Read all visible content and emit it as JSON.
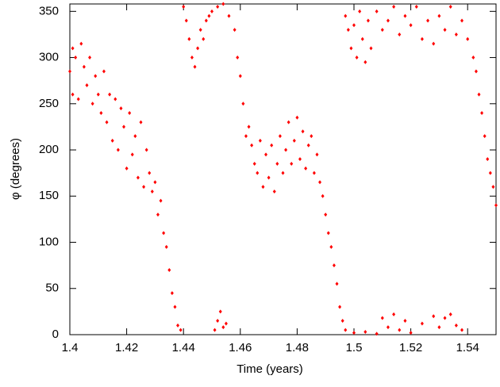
{
  "chart_data": {
    "type": "scatter",
    "x_label": "Time (years)",
    "y_label": "φ (degrees)",
    "color": "#ff0000",
    "xlim": [
      1.4,
      1.55
    ],
    "ylim": [
      0,
      358
    ],
    "xticks": [
      1.4,
      1.42,
      1.44,
      1.46,
      1.48,
      1.5,
      1.52,
      1.54
    ],
    "yticks": [
      0,
      50,
      100,
      150,
      200,
      250,
      300,
      350
    ],
    "x": [
      1.4,
      1.401,
      1.401,
      1.402,
      1.403,
      1.404,
      1.405,
      1.406,
      1.407,
      1.408,
      1.409,
      1.41,
      1.411,
      1.412,
      1.413,
      1.414,
      1.415,
      1.416,
      1.417,
      1.418,
      1.419,
      1.42,
      1.421,
      1.422,
      1.423,
      1.424,
      1.425,
      1.426,
      1.427,
      1.428,
      1.429,
      1.43,
      1.431,
      1.432,
      1.433,
      1.434,
      1.435,
      1.436,
      1.437,
      1.438,
      1.439,
      1.44,
      1.441,
      1.442,
      1.443,
      1.444,
      1.445,
      1.446,
      1.447,
      1.448,
      1.449,
      1.45,
      1.451,
      1.452,
      1.453,
      1.454,
      1.455,
      1.452,
      1.454,
      1.456,
      1.458,
      1.459,
      1.46,
      1.461,
      1.462,
      1.463,
      1.464,
      1.465,
      1.466,
      1.467,
      1.468,
      1.469,
      1.47,
      1.471,
      1.472,
      1.473,
      1.474,
      1.475,
      1.476,
      1.477,
      1.478,
      1.479,
      1.48,
      1.481,
      1.482,
      1.483,
      1.484,
      1.485,
      1.486,
      1.487,
      1.488,
      1.489,
      1.49,
      1.491,
      1.492,
      1.493,
      1.494,
      1.495,
      1.496,
      1.497,
      1.497,
      1.498,
      1.499,
      1.5,
      1.501,
      1.502,
      1.503,
      1.504,
      1.505,
      1.506,
      1.508,
      1.51,
      1.512,
      1.514,
      1.516,
      1.518,
      1.52,
      1.522,
      1.524,
      1.526,
      1.528,
      1.53,
      1.532,
      1.534,
      1.536,
      1.538,
      1.54,
      1.542,
      1.543,
      1.544,
      1.545,
      1.546,
      1.547,
      1.548,
      1.549,
      1.55,
      1.5,
      1.504,
      1.508,
      1.51,
      1.512,
      1.514,
      1.516,
      1.518,
      1.52,
      1.524,
      1.528,
      1.53,
      1.532,
      1.534,
      1.536,
      1.538
    ],
    "values": [
      285,
      260,
      310,
      300,
      255,
      315,
      290,
      270,
      300,
      250,
      280,
      260,
      240,
      285,
      230,
      260,
      210,
      255,
      200,
      245,
      225,
      180,
      240,
      195,
      215,
      170,
      230,
      160,
      200,
      175,
      155,
      165,
      130,
      145,
      110,
      95,
      70,
      45,
      30,
      10,
      5,
      355,
      340,
      320,
      300,
      290,
      310,
      330,
      320,
      340,
      345,
      350,
      5,
      15,
      25,
      8,
      12,
      355,
      358,
      345,
      330,
      300,
      280,
      250,
      215,
      225,
      205,
      185,
      175,
      210,
      160,
      195,
      170,
      205,
      155,
      185,
      215,
      175,
      200,
      230,
      185,
      210,
      235,
      190,
      220,
      180,
      205,
      215,
      175,
      195,
      165,
      150,
      130,
      110,
      95,
      75,
      55,
      30,
      15,
      5,
      345,
      330,
      310,
      335,
      300,
      350,
      320,
      295,
      340,
      310,
      350,
      330,
      340,
      355,
      325,
      345,
      335,
      355,
      320,
      340,
      315,
      345,
      330,
      355,
      325,
      340,
      320,
      300,
      285,
      260,
      240,
      215,
      190,
      175,
      160,
      140,
      2,
      3,
      1,
      18,
      8,
      22,
      5,
      15,
      2,
      12,
      20,
      8,
      18,
      22,
      10,
      5
    ]
  }
}
